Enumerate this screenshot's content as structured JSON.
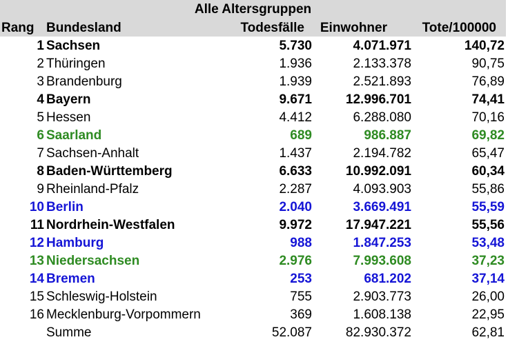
{
  "table": {
    "title": "Alle Altersgruppen",
    "headers": {
      "rang": "Rang",
      "bundesland": "Bundesland",
      "todesfaelle": "Todesfälle",
      "einwohner": "Einwohner",
      "tote": "Tote/100000"
    },
    "colors": {
      "green": "#2e8b22",
      "blue": "#1515d6",
      "header_bg": "#d9d9d9"
    },
    "rows": [
      {
        "rang": "1",
        "land": "Sachsen",
        "tod": "5.730",
        "ein": "4.071.971",
        "tote": "140,72",
        "style": "bold"
      },
      {
        "rang": "2",
        "land": "Thüringen",
        "tod": "1.936",
        "ein": "2.133.378",
        "tote": "90,75",
        "style": "normal"
      },
      {
        "rang": "3",
        "land": "Brandenburg",
        "tod": "1.939",
        "ein": "2.521.893",
        "tote": "76,89",
        "style": "normal"
      },
      {
        "rang": "4",
        "land": "Bayern",
        "tod": "9.671",
        "ein": "12.996.701",
        "tote": "74,41",
        "style": "bold"
      },
      {
        "rang": "5",
        "land": "Hessen",
        "tod": "4.412",
        "ein": "6.288.080",
        "tote": "70,16",
        "style": "normal"
      },
      {
        "rang": "6",
        "land": "Saarland",
        "tod": "689",
        "ein": "986.887",
        "tote": "69,82",
        "style": "green"
      },
      {
        "rang": "7",
        "land": "Sachsen-Anhalt",
        "tod": "1.437",
        "ein": "2.194.782",
        "tote": "65,47",
        "style": "normal"
      },
      {
        "rang": "8",
        "land": "Baden-Württemberg",
        "tod": "6.633",
        "ein": "10.992.091",
        "tote": "60,34",
        "style": "bold"
      },
      {
        "rang": "9",
        "land": "Rheinland-Pfalz",
        "tod": "2.287",
        "ein": "4.093.903",
        "tote": "55,86",
        "style": "normal"
      },
      {
        "rang": "10",
        "land": "Berlin",
        "tod": "2.040",
        "ein": "3.669.491",
        "tote": "55,59",
        "style": "blue"
      },
      {
        "rang": "11",
        "land": "Nordrhein-Westfalen",
        "tod": "9.972",
        "ein": "17.947.221",
        "tote": "55,56",
        "style": "bold"
      },
      {
        "rang": "12",
        "land": "Hamburg",
        "tod": "988",
        "ein": "1.847.253",
        "tote": "53,48",
        "style": "blue"
      },
      {
        "rang": "13",
        "land": "Niedersachsen",
        "tod": "2.976",
        "ein": "7.993.608",
        "tote": "37,23",
        "style": "green"
      },
      {
        "rang": "14",
        "land": "Bremen",
        "tod": "253",
        "ein": "681.202",
        "tote": "37,14",
        "style": "blue"
      },
      {
        "rang": "15",
        "land": "Schleswig-Holstein",
        "tod": "755",
        "ein": "2.903.773",
        "tote": "26,00",
        "style": "normal"
      },
      {
        "rang": "16",
        "land": "Mecklenburg-Vorpommern",
        "tod": "369",
        "ein": "1.608.138",
        "tote": "22,95",
        "style": "normal"
      },
      {
        "rang": "",
        "land": "Summe",
        "tod": "52.087",
        "ein": "82.930.372",
        "tote": "62,81",
        "style": "normal"
      }
    ]
  }
}
